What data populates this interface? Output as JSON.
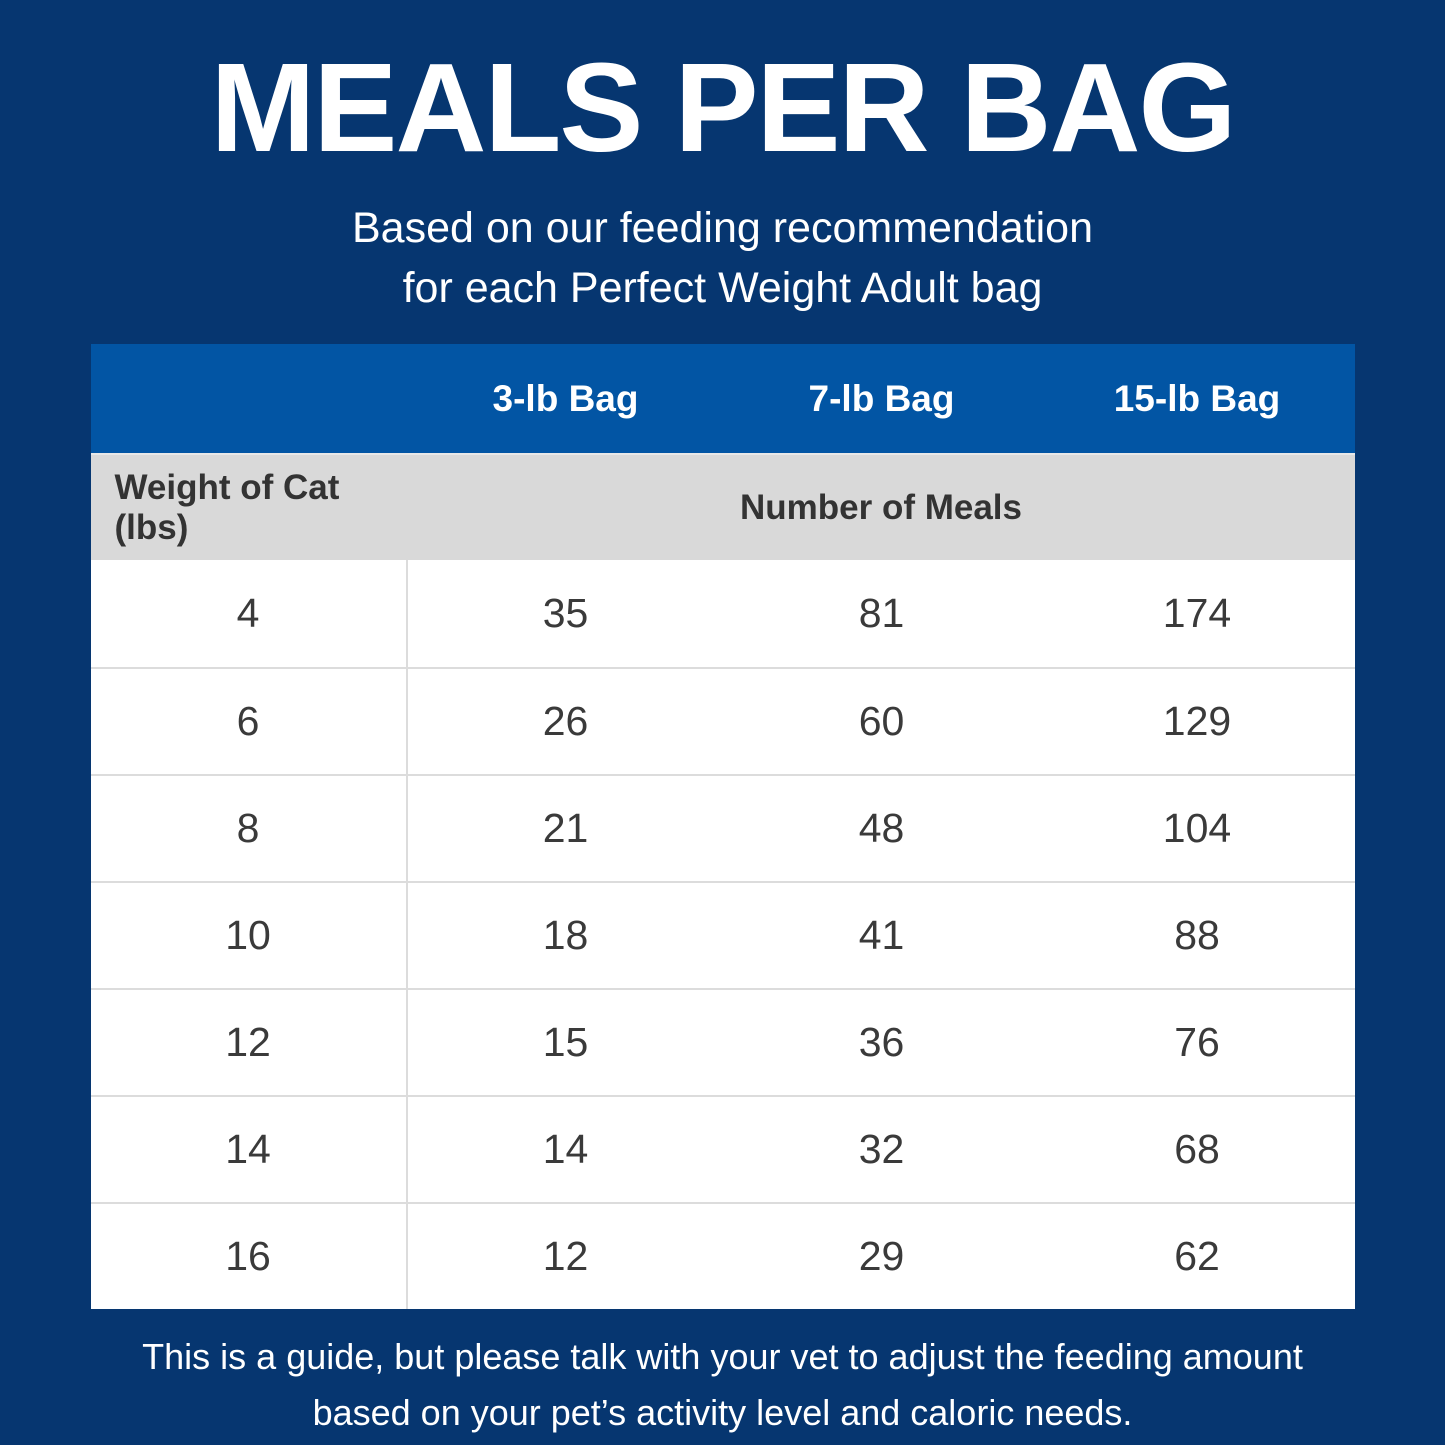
{
  "page": {
    "title": "MEALS PER BAG",
    "subtitle_line1": "Based on our feeding recommendation",
    "subtitle_line2": "for each Perfect Weight Adult bag",
    "footer_line1": "This is a guide, but please talk with your vet to adjust the feeding amount",
    "footer_line2": "based on your pet’s activity level and caloric needs."
  },
  "colors": {
    "background_navy": "#063670",
    "header_blue": "#0255a4",
    "subheader_gray": "#d9d9d9",
    "row_white": "#ffffff",
    "grid_line": "#dcdcdc",
    "text_dark": "#333333",
    "text_white": "#ffffff"
  },
  "table": {
    "bag_columns": [
      "3-lb Bag",
      "7-lb Bag",
      "15-lb Bag"
    ],
    "row_header_label": "Weight of Cat (lbs)",
    "meals_header_label": "Number of Meals",
    "rows": [
      {
        "weight": "4",
        "bag3": "35",
        "bag7": "81",
        "bag15": "174"
      },
      {
        "weight": "6",
        "bag3": "26",
        "bag7": "60",
        "bag15": "129"
      },
      {
        "weight": "8",
        "bag3": "21",
        "bag7": "48",
        "bag15": "104"
      },
      {
        "weight": "10",
        "bag3": "18",
        "bag7": "41",
        "bag15": "88"
      },
      {
        "weight": "12",
        "bag3": "15",
        "bag7": "36",
        "bag15": "76"
      },
      {
        "weight": "14",
        "bag3": "14",
        "bag7": "32",
        "bag15": "68"
      },
      {
        "weight": "16",
        "bag3": "12",
        "bag7": "29",
        "bag15": "62"
      }
    ]
  },
  "chart_data": {
    "type": "table",
    "title": "MEALS PER BAG",
    "subtitle": "Based on our feeding recommendation for each Perfect Weight Adult bag",
    "columns": [
      "Weight of Cat (lbs)",
      "3-lb Bag",
      "7-lb Bag",
      "15-lb Bag"
    ],
    "column_group_label": "Number of Meals",
    "rows": [
      [
        4,
        35,
        81,
        174
      ],
      [
        6,
        26,
        60,
        129
      ],
      [
        8,
        21,
        48,
        104
      ],
      [
        10,
        18,
        41,
        88
      ],
      [
        12,
        15,
        36,
        76
      ],
      [
        14,
        14,
        32,
        68
      ],
      [
        16,
        12,
        29,
        62
      ]
    ],
    "footnote": "This is a guide, but please talk with your vet to adjust the feeding amount based on your pet’s activity level and caloric needs."
  }
}
